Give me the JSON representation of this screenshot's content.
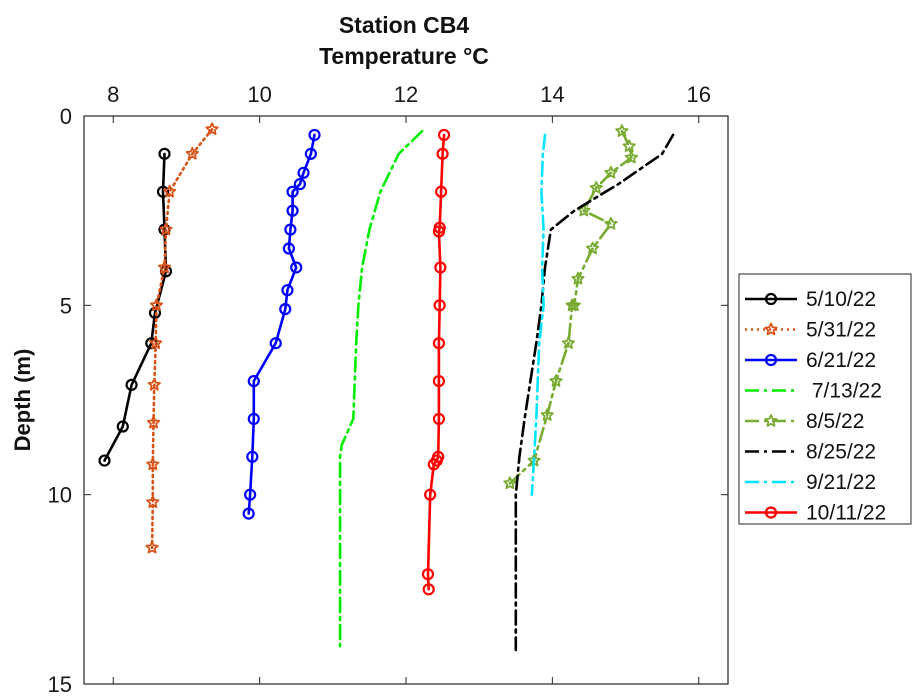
{
  "chart_data": {
    "type": "line",
    "title": "Station CB4",
    "subtitle": "Temperature °C",
    "xlabel": "",
    "ylabel": "Depth (m)",
    "xlim": [
      7.6,
      16.4
    ],
    "ylim": [
      0,
      15
    ],
    "y_reversed": true,
    "x_axis_position": "top",
    "xticks": [
      8,
      10,
      12,
      14,
      16
    ],
    "yticks": [
      0,
      5,
      10,
      15
    ],
    "grid": false,
    "legend_position": "right",
    "series": [
      {
        "name": "5/10/22",
        "color": "#000000",
        "line_style": "solid",
        "marker": "circle",
        "x": [
          8.7,
          8.68,
          8.7,
          8.72,
          8.57,
          8.52,
          8.25,
          8.13,
          7.88
        ],
        "y": [
          1.0,
          2.0,
          3.0,
          4.1,
          5.2,
          6.0,
          7.1,
          8.2,
          9.1
        ]
      },
      {
        "name": "5/31/22",
        "color": "#D95319",
        "line_style": "dotted",
        "marker": "star",
        "x": [
          9.35,
          9.08,
          8.77,
          8.72,
          8.7,
          8.59,
          8.58,
          8.56,
          8.55,
          8.54,
          8.54,
          8.53
        ],
        "y": [
          0.35,
          1.0,
          2.0,
          3.0,
          4.0,
          5.0,
          6.0,
          7.1,
          8.1,
          9.2,
          10.2,
          11.4
        ]
      },
      {
        "name": "6/21/22",
        "color": "#0000FF",
        "line_style": "solid",
        "marker": "circle",
        "x": [
          10.75,
          10.7,
          10.6,
          10.55,
          10.45,
          10.45,
          10.42,
          10.4,
          10.5,
          10.38,
          10.35,
          10.22,
          9.92,
          9.92,
          9.9,
          9.87,
          9.85
        ],
        "y": [
          0.5,
          1.0,
          1.5,
          1.8,
          2.0,
          2.5,
          3.0,
          3.5,
          4.0,
          4.6,
          5.1,
          6.0,
          7.0,
          8.0,
          9.0,
          10.0,
          10.5
        ]
      },
      {
        "name": " 7/13/22",
        "color": "#00EE00",
        "line_style": "dashdot",
        "marker": "none",
        "x": [
          12.22,
          11.9,
          11.65,
          11.5,
          11.4,
          11.35,
          11.32,
          11.28,
          11.12,
          11.1,
          11.1
        ],
        "y": [
          0.4,
          1.0,
          2.0,
          3.0,
          4.0,
          5.0,
          6.0,
          8.0,
          8.7,
          9.0,
          14.0
        ]
      },
      {
        "name": "8/5/22",
        "color": "#77AC30",
        "line_style": "dashdot",
        "marker": "star",
        "x": [
          14.95,
          15.05,
          15.08,
          14.8,
          14.6,
          14.43,
          14.8,
          14.55,
          14.35,
          14.3,
          14.27,
          14.22,
          14.05,
          13.93,
          13.75,
          13.42
        ],
        "y": [
          0.4,
          0.8,
          1.1,
          1.5,
          1.9,
          2.5,
          2.85,
          3.5,
          4.3,
          5.0,
          5.0,
          6.0,
          7.0,
          7.9,
          9.1,
          9.7
        ]
      },
      {
        "name": "8/25/22",
        "color": "#000000",
        "line_style": "dashdot",
        "marker": "none",
        "x": [
          15.65,
          15.5,
          14.9,
          14.3,
          13.98,
          13.9,
          13.85,
          13.78,
          13.7,
          13.62,
          13.55,
          13.5,
          13.5
        ],
        "y": [
          0.5,
          1.0,
          1.8,
          2.5,
          3.0,
          4.0,
          5.0,
          6.0,
          7.0,
          8.0,
          9.0,
          10.0,
          14.1
        ]
      },
      {
        "name": "9/21/22",
        "color": "#00E5FF",
        "line_style": "dashdot",
        "marker": "none",
        "x": [
          13.9,
          13.87,
          13.85,
          13.88,
          13.86,
          13.88,
          13.82,
          13.78,
          13.72
        ],
        "y": [
          0.5,
          1.0,
          2.0,
          3.0,
          4.0,
          5.0,
          6.0,
          8.0,
          10.0
        ]
      },
      {
        "name": "10/11/22",
        "color": "#FF0000",
        "line_style": "solid",
        "marker": "circle",
        "x": [
          12.52,
          12.5,
          12.48,
          12.46,
          12.45,
          12.47,
          12.46,
          12.45,
          12.45,
          12.45,
          12.44,
          12.42,
          12.38,
          12.33,
          12.3,
          12.31
        ],
        "y": [
          0.5,
          1.0,
          2.0,
          2.95,
          3.05,
          4.0,
          5.0,
          6.0,
          7.0,
          8.0,
          9.0,
          9.1,
          9.2,
          10.0,
          12.1,
          12.5
        ]
      }
    ]
  }
}
